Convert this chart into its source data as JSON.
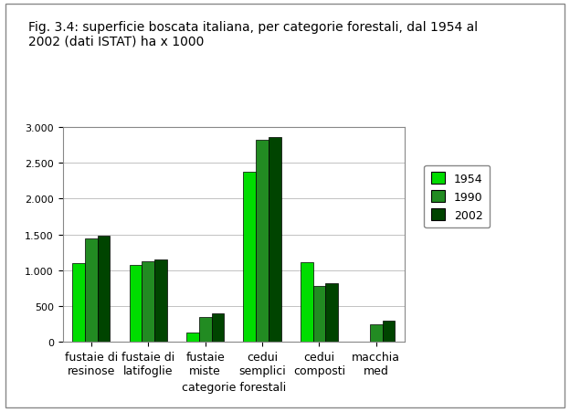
{
  "title": "Fig. 3.4: superficie boscata italiana, per categorie forestali, dal 1954 al\n2002 (dati ISTAT) ha x 1000",
  "categories": [
    "fustaie di\nresinose",
    "fustaie di\nlatifoglie",
    "fustaie\nmiste",
    "cedui\nsemplici",
    "cedui\ncomposti",
    "macchia\nmed"
  ],
  "xlabel": "categorie forestali",
  "years": [
    "1954",
    "1990",
    "2002"
  ],
  "values": {
    "1954": [
      1100,
      1080,
      130,
      2370,
      1110,
      0
    ],
    "1990": [
      1440,
      1130,
      345,
      2820,
      780,
      245
    ],
    "2002": [
      1480,
      1150,
      395,
      2860,
      820,
      295
    ]
  },
  "colors": {
    "1954": "#00DD00",
    "1990": "#228B22",
    "2002": "#004400"
  },
  "ylim": [
    0,
    3000
  ],
  "yticks": [
    0,
    500,
    1000,
    1500,
    2000,
    2500,
    3000
  ],
  "ytick_labels": [
    "0",
    "500",
    "1.000",
    "1.500",
    "2.000",
    "2.500",
    "3.000"
  ],
  "background_color": "#ffffff",
  "title_fontsize": 10,
  "axis_fontsize": 9,
  "tick_fontsize": 8,
  "legend_fontsize": 9
}
